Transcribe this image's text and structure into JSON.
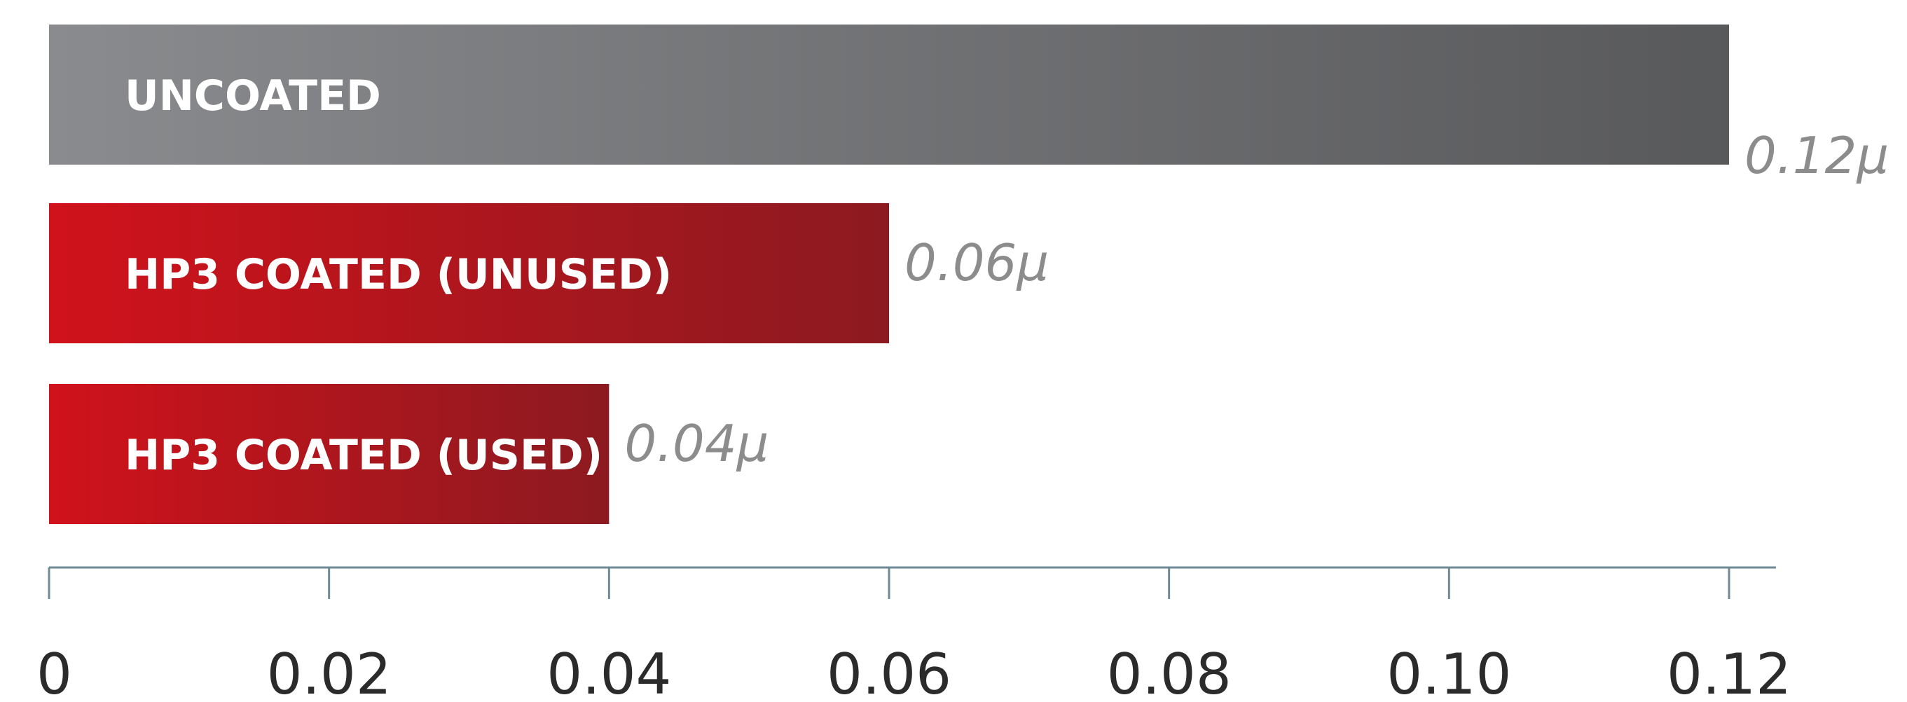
{
  "chart_data": {
    "type": "bar",
    "orientation": "horizontal",
    "categories": [
      "UNCOATED",
      "HP3 COATED (UNUSED)",
      "HP3 COATED (USED)"
    ],
    "values": [
      0.12,
      0.06,
      0.04
    ],
    "value_labels": [
      "0.12μ",
      "0.06μ",
      "0.04μ"
    ],
    "bar_colors": [
      {
        "start": "#8a8b8e",
        "end": "#58595b"
      },
      {
        "start": "#d0121b",
        "end": "#8c1a20"
      },
      {
        "start": "#d0121b",
        "end": "#8c1a20"
      }
    ],
    "title": "",
    "xlabel": "",
    "ylabel": "",
    "xlim": [
      0,
      0.12
    ],
    "ticks": [
      0,
      0.02,
      0.04,
      0.06,
      0.08,
      0.1,
      0.12
    ],
    "tick_labels": [
      "0",
      "0.02",
      "0.04",
      "0.06",
      "0.08",
      "0.10",
      "0.12"
    ],
    "grid": false,
    "legend": "none"
  }
}
